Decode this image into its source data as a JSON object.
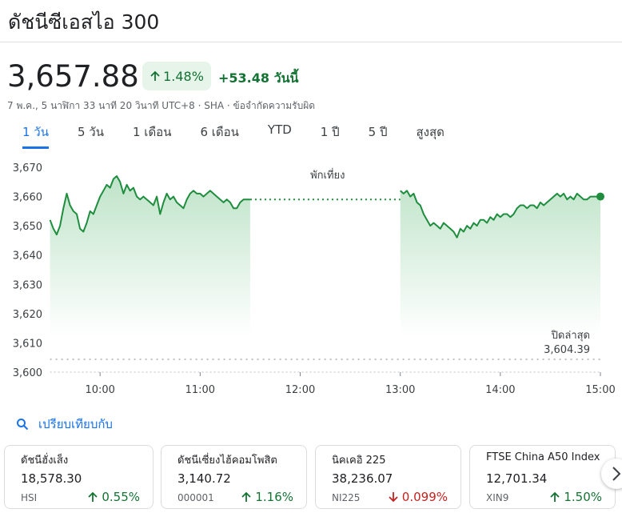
{
  "header": {
    "title": "ดัชนีซีเอสไอ 300"
  },
  "quote": {
    "price": "3,657.88",
    "change_percent": "1.48%",
    "change": "+53.48 วันนี้",
    "meta": "7 พ.ค., 5 นาฬิกา 33 นาที 20 วินาที UTC+8 · SHA · ข้อจำกัดความรับผิด"
  },
  "tabs": [
    "1 วัน",
    "5 วัน",
    "1 เดือน",
    "6 เดือน",
    "YTD",
    "1 ปี",
    "5 ปี",
    "สูงสุด"
  ],
  "chart_data": {
    "type": "line",
    "color": "#1e8e3e",
    "grid": false,
    "x": [
      570,
      572,
      574,
      576,
      578,
      580,
      582,
      584,
      586,
      588,
      590,
      592,
      594,
      596,
      598,
      600,
      602,
      604,
      606,
      608,
      610,
      612,
      614,
      616,
      618,
      620,
      622,
      624,
      626,
      628,
      630,
      632,
      634,
      636,
      638,
      640,
      642,
      644,
      646,
      648,
      650,
      652,
      654,
      656,
      658,
      660,
      662,
      664,
      666,
      668,
      670,
      672,
      674,
      676,
      678,
      680,
      682,
      684,
      686,
      688,
      690,
      735,
      780,
      782,
      784,
      786,
      788,
      790,
      792,
      794,
      796,
      798,
      800,
      802,
      804,
      806,
      808,
      810,
      812,
      814,
      816,
      818,
      820,
      822,
      824,
      826,
      828,
      830,
      832,
      834,
      836,
      838,
      840,
      842,
      844,
      846,
      848,
      850,
      852,
      854,
      856,
      858,
      860,
      862,
      864,
      866,
      868,
      870,
      872,
      874,
      876,
      878,
      880,
      882,
      884,
      886,
      888,
      890,
      892,
      894,
      896,
      898,
      900
    ],
    "values": [
      3652,
      3649,
      3647,
      3650,
      3656,
      3661,
      3657,
      3655,
      3654,
      3649,
      3648,
      3651,
      3655,
      3654,
      3657,
      3660,
      3662,
      3664,
      3663,
      3666,
      3667,
      3665,
      3661,
      3664,
      3662,
      3663,
      3660,
      3659,
      3660,
      3659,
      3658,
      3657,
      3660,
      3654,
      3658,
      3661,
      3659,
      3660,
      3658,
      3657,
      3656,
      3659,
      3661,
      3662,
      3661,
      3661,
      3660,
      3661,
      3662,
      3661,
      3660,
      3659,
      3658,
      3659,
      3658,
      3656,
      3656,
      3658,
      3659,
      3659,
      3659,
      null,
      3662,
      3661,
      3662,
      3660,
      3661,
      3658,
      3657,
      3654,
      3652,
      3650,
      3651,
      3650,
      3649,
      3651,
      3650,
      3649,
      3648,
      3646,
      3649,
      3648,
      3650,
      3649,
      3651,
      3650,
      3652,
      3652,
      3651,
      3653,
      3652,
      3654,
      3653,
      3654,
      3654,
      3653,
      3654,
      3656,
      3657,
      3657,
      3656,
      3657,
      3657,
      3656,
      3658,
      3657,
      3658,
      3659,
      3660,
      3661,
      3660,
      3661,
      3659,
      3660,
      3659,
      3661,
      3660,
      3659,
      3659,
      3660,
      3660,
      3660,
      3660
    ],
    "xlim": [
      570,
      900
    ],
    "xticks": [
      {
        "value": 600,
        "label": "10:00"
      },
      {
        "value": 660,
        "label": "11:00"
      },
      {
        "value": 720,
        "label": "12:00"
      },
      {
        "value": 780,
        "label": "13:00"
      },
      {
        "value": 840,
        "label": "14:00"
      },
      {
        "value": 900,
        "label": "15:00"
      }
    ],
    "ylim": [
      3600,
      3670
    ],
    "yticks": [
      {
        "value": 3600,
        "label": "3,600"
      },
      {
        "value": 3610,
        "label": "3,610"
      },
      {
        "value": 3620,
        "label": "3,620"
      },
      {
        "value": 3630,
        "label": "3,630"
      },
      {
        "value": 3640,
        "label": "3,640"
      },
      {
        "value": 3650,
        "label": "3,650"
      },
      {
        "value": 3660,
        "label": "3,660"
      },
      {
        "value": 3670,
        "label": "3,670"
      }
    ],
    "annotation": "พักเที่ยง",
    "previous_close": {
      "label": "ปิดล่าสุด",
      "value": 3604.39,
      "value_label": "3,604.39"
    }
  },
  "compare": {
    "label": "เปรียบเทียบกับ",
    "cards": [
      {
        "name": "ดัชนีฮั่งเส็ง",
        "value": "18,578.30",
        "ticker": "HSI",
        "change": "0.55%",
        "direction": "up"
      },
      {
        "name": "ดัชนีเซี่ยงไฮ้คอมโพสิต",
        "value": "3,140.72",
        "ticker": "000001",
        "change": "1.16%",
        "direction": "up"
      },
      {
        "name": "นิคเคอิ 225",
        "value": "38,236.07",
        "ticker": "NI225",
        "change": "0.099%",
        "direction": "down"
      },
      {
        "name": "FTSE China A50 Index",
        "value": "12,701.34",
        "ticker": "XIN9",
        "change": "1.50%",
        "direction": "up"
      }
    ]
  }
}
